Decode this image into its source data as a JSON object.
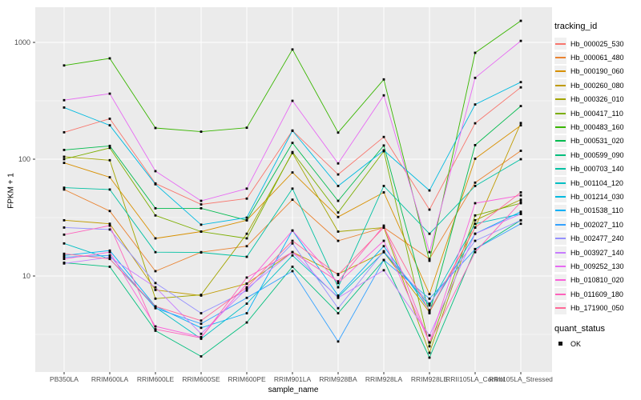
{
  "chart_data": {
    "type": "line",
    "title": "",
    "xlabel": "sample_name",
    "ylabel": "FPKM + 1",
    "y_scale": "log10",
    "ylim": [
      1.5,
      2000
    ],
    "y_ticks": [
      10,
      100,
      1000
    ],
    "y_minor_gridlines": [
      3.162,
      31.62,
      316.2
    ],
    "grid": "on",
    "legend_position": "right",
    "panel_bg": "#EBEBEB",
    "grid_color": "#FFFFFF",
    "tick_label_color": "#4D4D4D",
    "point_color": "#000000",
    "point_shape": "square",
    "categories": [
      "PB350LA",
      "RRIM600LA",
      "RRIM600LE",
      "RRIM600SE",
      "RRIM600PE",
      "RRIM901LA",
      "RRIM928BA",
      "RRIM928LA",
      "RRIM928LE",
      "RRII105LA_Control",
      "RRII105LA_Stressed"
    ],
    "legend": {
      "tracking_title": "tracking_id",
      "quant_title": "quant_status",
      "quant_label": "OK"
    },
    "series": [
      {
        "name": "Hb_000025_530",
        "color": "#F8766D",
        "values": [
          170,
          222,
          62,
          41,
          46,
          176,
          74,
          155,
          37,
          203,
          412
        ]
      },
      {
        "name": "Hb_000061_480",
        "color": "#EA8331",
        "values": [
          55,
          36,
          11,
          16,
          18,
          45,
          20,
          26,
          14,
          63,
          118
        ]
      },
      {
        "name": "Hb_000190_060",
        "color": "#D89000",
        "values": [
          93,
          70,
          21,
          24,
          30,
          77,
          32,
          52,
          7,
          101,
          195
        ]
      },
      {
        "name": "Hb_000260_080",
        "color": "#C09B00",
        "values": [
          30,
          28,
          7.6,
          6.8,
          8.6,
          16,
          10.4,
          16,
          4.9,
          26,
          204
        ]
      },
      {
        "name": "Hb_000326_010",
        "color": "#A3A500",
        "values": [
          105,
          98,
          6.4,
          6.9,
          23,
          113,
          24,
          26,
          2.2,
          30,
          45
        ]
      },
      {
        "name": "Hb_000417_110",
        "color": "#7CAE00",
        "values": [
          100,
          125,
          33,
          24,
          21,
          115,
          35,
          117,
          2.5,
          33,
          42
        ]
      },
      {
        "name": "Hb_000483_160",
        "color": "#39B600",
        "values": [
          635,
          730,
          185,
          172,
          186,
          870,
          169,
          482,
          13.5,
          815,
          1530
        ]
      },
      {
        "name": "Hb_000531_020",
        "color": "#00BB4E",
        "values": [
          120,
          130,
          38,
          38,
          30,
          138,
          44,
          131,
          4.8,
          132,
          285
        ]
      },
      {
        "name": "Hb_000599_090",
        "color": "#00BF7D",
        "values": [
          13,
          12,
          3.4,
          2.05,
          4,
          12,
          4.8,
          13.7,
          2,
          17,
          30
        ]
      },
      {
        "name": "Hb_000703_140",
        "color": "#00C1A3",
        "values": [
          57,
          55,
          16,
          15.9,
          14.6,
          56,
          8,
          59,
          23,
          59,
          100
        ]
      },
      {
        "name": "Hb_001104_120",
        "color": "#00BFC4",
        "values": [
          19,
          14,
          5.4,
          2.9,
          5.8,
          15,
          6.6,
          16,
          5.6,
          28,
          34
        ]
      },
      {
        "name": "Hb_001214_030",
        "color": "#00BAE0",
        "values": [
          277,
          195,
          61,
          27.5,
          31.6,
          175,
          59,
          119,
          54,
          294,
          457
        ]
      },
      {
        "name": "Hb_001538_110",
        "color": "#00B0F6",
        "values": [
          15,
          16.5,
          5.5,
          3.6,
          4.8,
          24.5,
          6.8,
          18,
          5.1,
          23,
          35.5
        ]
      },
      {
        "name": "Hb_002027_110",
        "color": "#35A2FF",
        "values": [
          14.5,
          15,
          5.3,
          3.9,
          6.5,
          11,
          2.75,
          13.7,
          6.4,
          17,
          28
        ]
      },
      {
        "name": "Hb_002477_240",
        "color": "#9590FF",
        "values": [
          26,
          25,
          8.7,
          4.8,
          7.5,
          19,
          5.3,
          16.3,
          5.8,
          20,
          30
        ]
      },
      {
        "name": "Hb_003927_140",
        "color": "#C77CFF",
        "values": [
          12.8,
          14.5,
          8,
          3.2,
          7.8,
          16,
          6.5,
          11.2,
          3.1,
          23,
          34
        ]
      },
      {
        "name": "Hb_009252_130",
        "color": "#E76BF3",
        "values": [
          320,
          364,
          79,
          44,
          56,
          316,
          92,
          352,
          16,
          497,
          1030
        ]
      },
      {
        "name": "Hb_010810_020",
        "color": "#FA62DB",
        "values": [
          14,
          16,
          3.7,
          3,
          8.6,
          24.5,
          8.7,
          20,
          2.7,
          42,
          49
        ]
      },
      {
        "name": "Hb_011609_180",
        "color": "#FF62BC",
        "values": [
          22.6,
          27,
          3.5,
          2.95,
          9.7,
          16,
          9,
          27,
          2.7,
          16,
          43
        ]
      },
      {
        "name": "Hb_171900_050",
        "color": "#FF6A98",
        "values": [
          15.5,
          14,
          5.5,
          4.15,
          8,
          20,
          10.2,
          26,
          5,
          26,
          52
        ]
      }
    ]
  }
}
